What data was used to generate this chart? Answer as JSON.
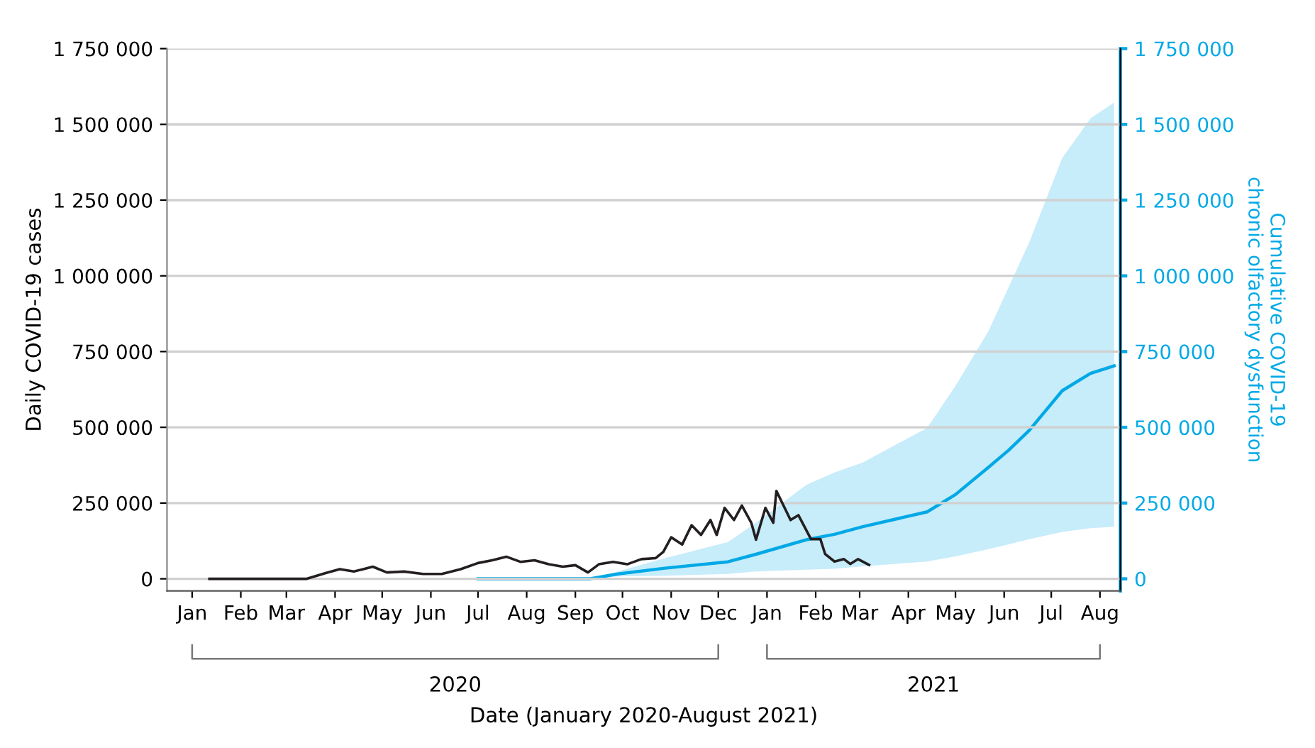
{
  "chart_data": {
    "type": "line",
    "xlabel": "Date (January 2020-August 2021)",
    "ylabel": "Daily COVID-19 cases",
    "y2label": "Cumulative COVID-19\nchronic olfactory dysfunction",
    "annotations": [
      "2020",
      "2021"
    ],
    "xlim": [
      "2019-12-16",
      "2021-08-14"
    ],
    "xticks": [
      {
        "value": "2020-01-01",
        "label": "Jan"
      },
      {
        "value": "2020-02-01",
        "label": "Feb"
      },
      {
        "value": "2020-03-01",
        "label": "Mar"
      },
      {
        "value": "2020-04-01",
        "label": "Apr"
      },
      {
        "value": "2020-05-01",
        "label": "May"
      },
      {
        "value": "2020-06-01",
        "label": "Jun"
      },
      {
        "value": "2020-07-01",
        "label": "Jul"
      },
      {
        "value": "2020-08-01",
        "label": "Aug"
      },
      {
        "value": "2020-09-01",
        "label": "Sep"
      },
      {
        "value": "2020-10-01",
        "label": "Oct"
      },
      {
        "value": "2020-11-01",
        "label": "Nov"
      },
      {
        "value": "2020-12-01",
        "label": "Dec"
      },
      {
        "value": "2021-01-01",
        "label": "Jan"
      },
      {
        "value": "2021-02-01",
        "label": "Feb"
      },
      {
        "value": "2021-03-01",
        "label": "Mar"
      },
      {
        "value": "2021-04-01",
        "label": "Apr"
      },
      {
        "value": "2021-05-01",
        "label": "May"
      },
      {
        "value": "2021-06-01",
        "label": "Jun"
      },
      {
        "value": "2021-07-01",
        "label": "Jul"
      },
      {
        "value": "2021-08-01",
        "label": "Aug"
      }
    ],
    "ylim": [
      -40000,
      1750000
    ],
    "yticks": [
      {
        "value": 0,
        "label": "0"
      },
      {
        "value": 250000,
        "label": "250 000"
      },
      {
        "value": 500000,
        "label": "500 000"
      },
      {
        "value": 750000,
        "label": "750 000"
      },
      {
        "value": 1000000,
        "label": "1 000 000"
      },
      {
        "value": 1250000,
        "label": "1 250 000"
      },
      {
        "value": 1500000,
        "label": "1 500 000"
      },
      {
        "value": 1750000,
        "label": "1 750 000"
      }
    ],
    "y2lim": [
      -40000,
      1750000
    ],
    "y2ticks": [
      {
        "value": 0,
        "label": "0"
      },
      {
        "value": 250000,
        "label": "250 000"
      },
      {
        "value": 500000,
        "label": "500 000"
      },
      {
        "value": 750000,
        "label": "750 000"
      },
      {
        "value": 1000000,
        "label": "1 000 000"
      },
      {
        "value": 1250000,
        "label": "1 250 000"
      },
      {
        "value": 1500000,
        "label": "1 500 000"
      },
      {
        "value": 1750000,
        "label": "1 750 000"
      }
    ],
    "grid": "y",
    "legend": false,
    "marker": "none",
    "line_style": "solid",
    "series": [
      {
        "color": "#231f20",
        "x": [
          "2020-01-12",
          "2020-03-14",
          "2020-03-26",
          "2020-04-04",
          "2020-04-13",
          "2020-04-25",
          "2020-05-04",
          "2020-05-15",
          "2020-05-27",
          "2020-06-08",
          "2020-06-20",
          "2020-07-01",
          "2020-07-10",
          "2020-07-19",
          "2020-07-28",
          "2020-08-06",
          "2020-08-15",
          "2020-08-24",
          "2020-09-01",
          "2020-09-09",
          "2020-09-16",
          "2020-09-25",
          "2020-10-04",
          "2020-10-13",
          "2020-10-22",
          "2020-10-27",
          "2020-11-01",
          "2020-11-08",
          "2020-11-14",
          "2020-11-20",
          "2020-11-26",
          "2020-11-30",
          "2020-12-05",
          "2020-12-11",
          "2020-12-16",
          "2020-12-22",
          "2020-12-25",
          "2020-12-31",
          "2021-01-05",
          "2021-01-07",
          "2021-01-16",
          "2021-01-21",
          "2021-01-29",
          "2021-02-04",
          "2021-02-07",
          "2021-02-13",
          "2021-02-19",
          "2021-02-23",
          "2021-02-28",
          "2021-03-07"
        ],
        "values": [
          0,
          0,
          19000,
          32000,
          24000,
          40000,
          21000,
          24000,
          16000,
          16000,
          32000,
          52000,
          61000,
          73000,
          56000,
          61000,
          48000,
          40000,
          45000,
          21000,
          48000,
          56000,
          48000,
          65000,
          68000,
          89000,
          137000,
          113000,
          177000,
          145000,
          194000,
          145000,
          234000,
          194000,
          242000,
          185000,
          129000,
          234000,
          185000,
          290000,
          194000,
          210000,
          131000,
          131000,
          82000,
          57000,
          65000,
          49000,
          65000,
          46000
        ]
      },
      {
        "color": "#00a9e6",
        "axis": "y2",
        "x": [
          "2020-07-01",
          "2020-09-10",
          "2020-09-28",
          "2020-10-28",
          "2020-12-07",
          "2020-12-25",
          "2021-01-26",
          "2021-02-13",
          "2021-03-03",
          "2021-04-13",
          "2021-05-01",
          "2021-05-22",
          "2021-06-04",
          "2021-06-17",
          "2021-07-08",
          "2021-07-26",
          "2021-08-10"
        ],
        "values": [
          0,
          0,
          16000,
          35000,
          56000,
          81000,
          129000,
          147000,
          172000,
          221000,
          278000,
          368000,
          425000,
          490000,
          621000,
          678000,
          703000
        ],
        "lower": [
          0,
          0,
          8000,
          10000,
          16000,
          24000,
          30000,
          33000,
          41000,
          57000,
          74000,
          98000,
          114000,
          131000,
          155000,
          167000,
          172000
        ],
        "upper": [
          0,
          0,
          24000,
          68000,
          121000,
          185000,
          310000,
          351000,
          384000,
          498000,
          637000,
          817000,
          964000,
          1111000,
          1389000,
          1520000,
          1572000
        ]
      }
    ]
  }
}
